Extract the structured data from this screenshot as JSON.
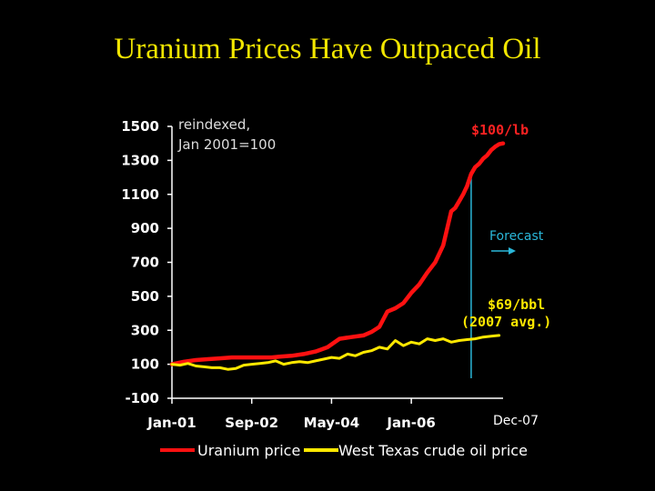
{
  "page_title": "Uranium Prices Have Outpaced Oil",
  "chart_data": {
    "type": "line",
    "title": "Uranium Prices Have Outpaced Oil",
    "y_note_line1": "reindexed,",
    "y_note_line2": "Jan 2001=100",
    "ylim": [
      -100,
      1500
    ],
    "yticks": [
      1500,
      1300,
      1100,
      900,
      700,
      500,
      300,
      100,
      -100
    ],
    "xlim": [
      0,
      83
    ],
    "x_ticks": [
      {
        "label": "Jan-01",
        "x": 0
      },
      {
        "label": "Sep-02",
        "x": 20
      },
      {
        "label": "May-04",
        "x": 40
      },
      {
        "label": "Jan-06",
        "x": 60
      }
    ],
    "x_last_label": "Dec-07",
    "x_unit": "months since Jan-01",
    "forecast_x": 75,
    "forecast_label": "Forecast",
    "annotations": {
      "uranium_end": "$100/lb",
      "oil_avg_line1": "$69/bbl",
      "oil_avg_line2": "(2007 avg.)"
    },
    "series": [
      {
        "name": "Uranium price",
        "color": "#ff1111",
        "x": [
          0,
          3,
          6,
          9,
          12,
          15,
          18,
          22,
          25,
          27,
          30,
          33,
          36,
          39,
          42,
          45,
          48,
          50,
          52,
          54,
          56,
          58,
          60,
          62,
          64,
          66,
          68,
          70,
          71,
          72,
          73,
          74,
          75,
          76,
          77,
          78,
          79,
          80,
          81,
          82,
          83
        ],
        "y": [
          100,
          115,
          125,
          130,
          135,
          140,
          140,
          140,
          140,
          145,
          150,
          160,
          175,
          200,
          250,
          260,
          270,
          290,
          320,
          410,
          430,
          460,
          520,
          570,
          640,
          700,
          800,
          1000,
          1020,
          1060,
          1100,
          1150,
          1220,
          1260,
          1280,
          1310,
          1330,
          1360,
          1380,
          1395,
          1400
        ]
      },
      {
        "name": "West Texas crude oil price",
        "color": "#ffe800",
        "x": [
          0,
          2,
          4,
          6,
          8,
          10,
          12,
          14,
          16,
          18,
          20,
          22,
          24,
          26,
          28,
          30,
          32,
          34,
          36,
          38,
          40,
          42,
          44,
          46,
          48,
          50,
          52,
          54,
          56,
          58,
          60,
          62,
          64,
          66,
          68,
          70,
          72,
          74,
          76,
          78,
          80,
          82
        ],
        "y": [
          100,
          95,
          105,
          90,
          85,
          80,
          80,
          70,
          75,
          95,
          100,
          105,
          110,
          120,
          100,
          110,
          115,
          110,
          120,
          130,
          140,
          135,
          160,
          150,
          170,
          180,
          200,
          190,
          240,
          210,
          230,
          220,
          250,
          240,
          250,
          230,
          240,
          245,
          250,
          260,
          265,
          270
        ]
      }
    ]
  }
}
